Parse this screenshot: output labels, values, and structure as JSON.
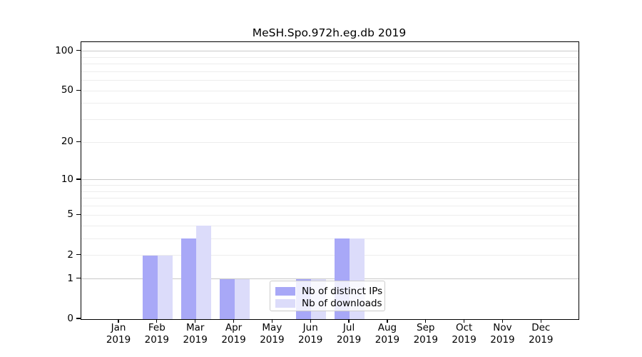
{
  "figure": {
    "background": "#ffffff"
  },
  "chart_data": {
    "type": "bar",
    "title": "MeSH.Spo.972h.eg.db 2019",
    "categories": [
      "Jan",
      "Feb",
      "Mar",
      "Apr",
      "May",
      "Jun",
      "Jul",
      "Aug",
      "Sep",
      "Oct",
      "Nov",
      "Dec"
    ],
    "x_year": "2019",
    "series": [
      {
        "name": "Nb of distinct IPs",
        "color": "#a8a8f7",
        "values": [
          0,
          2,
          3,
          1,
          0,
          1,
          3,
          0,
          0,
          0,
          0,
          0
        ]
      },
      {
        "name": "Nb of downloads",
        "color": "#dcdcfa",
        "values": [
          0,
          2,
          4,
          1,
          0,
          1,
          3,
          0,
          0,
          0,
          0,
          0
        ]
      }
    ],
    "xlabel": "",
    "ylabel": "",
    "yscale": "log1p",
    "ylim": [
      0,
      117
    ],
    "ytick_values": [
      0,
      1,
      2,
      5,
      10,
      20,
      50,
      100
    ],
    "ytick_labels": [
      "0",
      "1",
      "2",
      "5",
      "10",
      "20",
      "50",
      "100"
    ],
    "grid": true,
    "grid_major_values": [
      1,
      10,
      100
    ],
    "grid_minor_values": [
      2,
      3,
      4,
      5,
      6,
      7,
      8,
      9,
      20,
      30,
      40,
      50,
      60,
      70,
      80,
      90
    ],
    "grid_major_color": "#c9c9c9",
    "grid_minor_color": "#ededed",
    "legend_position": "lower center-right"
  }
}
